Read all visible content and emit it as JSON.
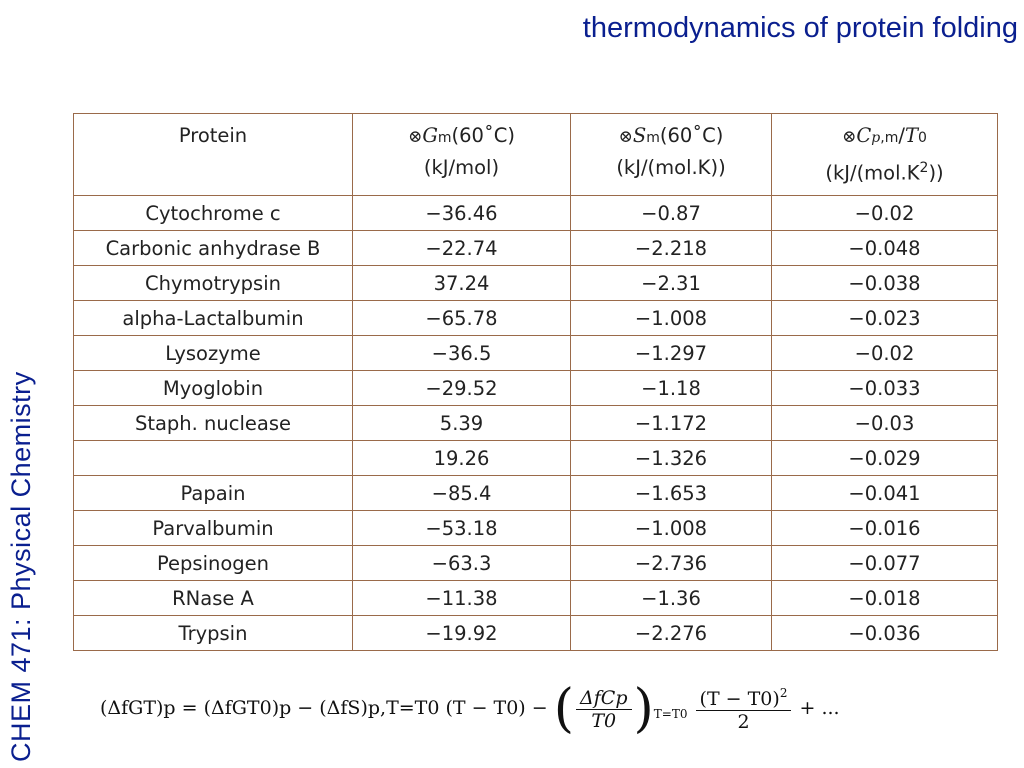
{
  "slide": {
    "title": "thermodynamics of protein folding",
    "side_label": "CHEM 471: Physical Chemistry"
  },
  "table": {
    "headers": [
      {
        "label": "Protein"
      },
      {
        "symbol": "⊗",
        "var": "G",
        "sub": "m",
        "condition": "(60˚C)",
        "unit": "(kJ/mol)"
      },
      {
        "symbol": "⊗",
        "var": "S",
        "sub": "m",
        "condition": "(60˚C)",
        "unit": "(kJ/(mol.K))"
      },
      {
        "symbol": "⊗",
        "var": "C",
        "sub_var": "p",
        "sub_extra": ",m",
        "slash": "/",
        "t_var": "T",
        "t_sub": "0",
        "unit_pre": "(kJ/(mol.K",
        "unit_sup": "2",
        "unit_post": "))"
      }
    ],
    "rows": [
      [
        "Cytochrome c",
        "−36.46",
        "−0.87",
        "−0.02"
      ],
      [
        "Carbonic anhydrase B",
        "−22.74",
        "−2.218",
        "−0.048"
      ],
      [
        "Chymotrypsin",
        "37.24",
        "−2.31",
        "−0.038"
      ],
      [
        "alpha-Lactalbumin",
        "−65.78",
        "−1.008",
        "−0.023"
      ],
      [
        "Lysozyme",
        "−36.5",
        "−1.297",
        "−0.02"
      ],
      [
        "Myoglobin",
        "−29.52",
        "−1.18",
        "−0.033"
      ],
      [
        "Staph. nuclease",
        "5.39",
        "−1.172",
        "−0.03"
      ],
      [
        "",
        "19.26",
        "−1.326",
        "−0.029"
      ],
      [
        "Papain",
        "−85.4",
        "−1.653",
        "−0.041"
      ],
      [
        "Parvalbumin",
        "−53.18",
        "−1.008",
        "−0.016"
      ],
      [
        "Pepsinogen",
        "−63.3",
        "−2.736",
        "−0.077"
      ],
      [
        "RNase A",
        "−11.38",
        "−1.36",
        "−0.018"
      ],
      [
        "Trypsin",
        "−19.92",
        "−2.276",
        "−0.036"
      ]
    ]
  },
  "equation": {
    "lhs": "(ΔfGT)p = (ΔfGT0)p − (ΔfS)p,T=T0 (T − T0) −",
    "fraction_num": "ΔfCp",
    "fraction_den": "T0",
    "fraction_cond": "T=T0",
    "second_num": "(T − T0)",
    "second_num_exp": "2",
    "second_den": "2",
    "tail": "+ ..."
  }
}
